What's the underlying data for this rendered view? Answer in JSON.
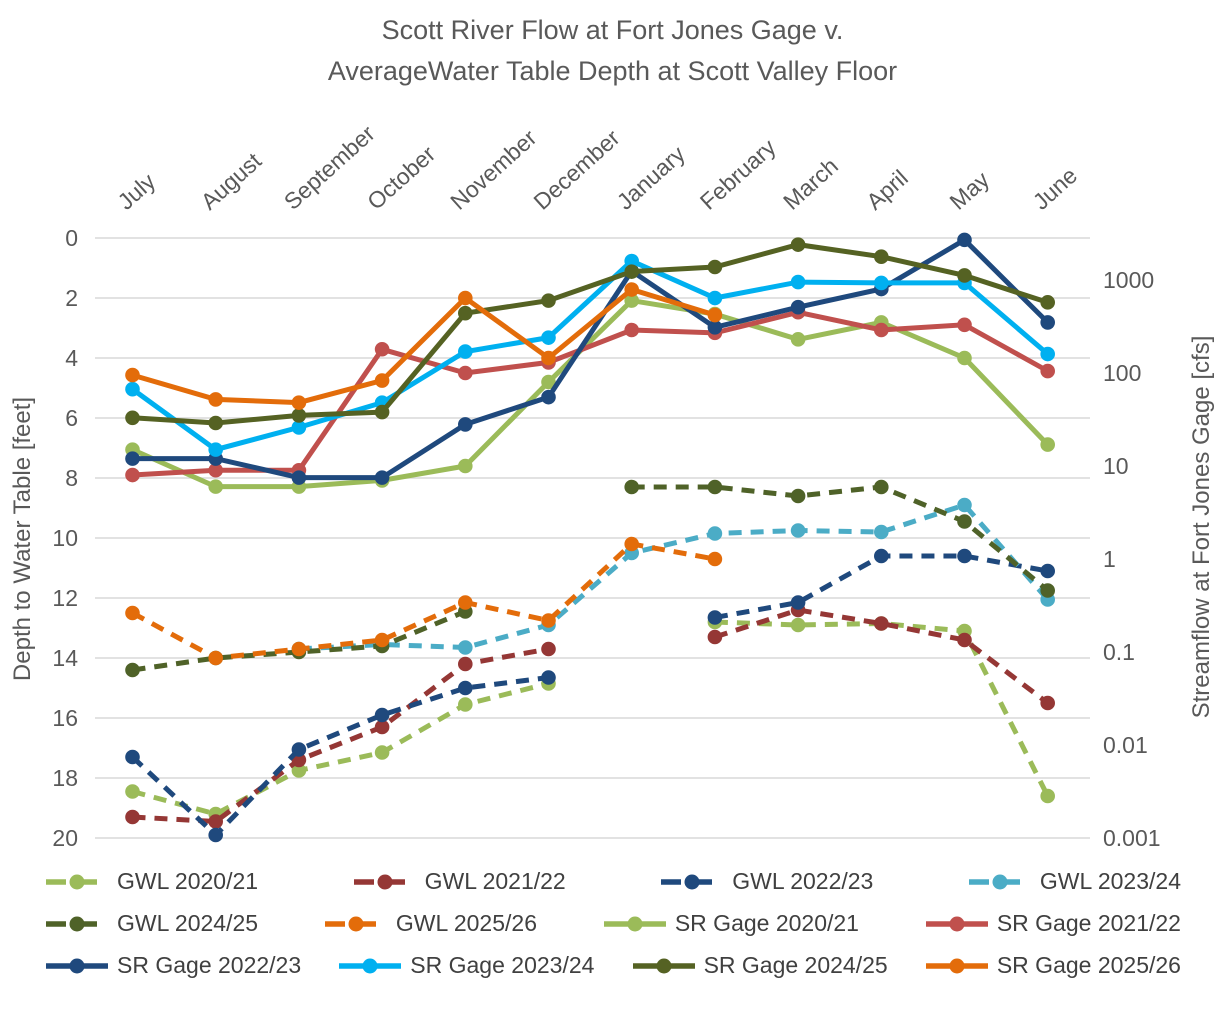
{
  "title": {
    "line1": "Scott River Flow at Fort Jones Gage v.",
    "line2": "AverageWater Table Depth at Scott Valley Floor"
  },
  "axes": {
    "left": {
      "title": "Depth to Water Table [feet]"
    },
    "right": {
      "title": "Streamflow at Fort Jones Gage [cfs]"
    }
  },
  "chart_data": {
    "type": "line",
    "title": "Scott River Flow at Fort Jones Gage v. AverageWater Table Depth at Scott Valley Floor",
    "categories": [
      "July",
      "August",
      "September",
      "October",
      "November",
      "December",
      "January",
      "February",
      "March",
      "April",
      "May",
      "June"
    ],
    "left_axis": {
      "label": "Depth to Water Table [feet]",
      "min": 0,
      "max": 20,
      "tick_step": 2,
      "inverted": true,
      "ticks": [
        0,
        2,
        4,
        6,
        8,
        10,
        12,
        14,
        16,
        18,
        20
      ]
    },
    "right_axis": {
      "label": "Streamflow at Fort Jones Gage [cfs]",
      "scale": "log",
      "ticks": [
        1000,
        100,
        10,
        1,
        0.1,
        0.01,
        0.001
      ]
    },
    "grid": "horizontal",
    "legend_position": "bottom",
    "series": [
      {
        "name": "GWL 2020/21",
        "axis": "depth",
        "line_style": "dashed",
        "color": "#9BBB59",
        "values": [
          18.45,
          19.2,
          17.75,
          17.15,
          15.55,
          14.85,
          null,
          12.8,
          12.9,
          12.85,
          13.1,
          18.6
        ]
      },
      {
        "name": "GWL 2021/22",
        "axis": "depth",
        "line_style": "dashed",
        "color": "#953735",
        "values": [
          19.3,
          19.45,
          17.4,
          16.3,
          14.2,
          13.7,
          null,
          13.3,
          12.4,
          12.85,
          13.4,
          15.5
        ]
      },
      {
        "name": "GWL 2022/23",
        "axis": "depth",
        "line_style": "dashed",
        "color": "#1F497D",
        "values": [
          17.3,
          19.9,
          17.05,
          15.9,
          15.0,
          14.65,
          null,
          12.65,
          12.15,
          10.6,
          10.6,
          11.1
        ]
      },
      {
        "name": "GWL 2023/24",
        "axis": "depth",
        "line_style": "dashed",
        "color": "#4BACC6",
        "values": [
          null,
          null,
          13.7,
          13.55,
          13.65,
          12.9,
          10.5,
          9.85,
          9.75,
          9.8,
          8.9,
          12.05
        ]
      },
      {
        "name": "GWL 2024/25",
        "axis": "depth",
        "line_style": "dashed",
        "color": "#4F6228",
        "values": [
          14.4,
          14.0,
          13.8,
          13.6,
          12.45,
          null,
          8.3,
          8.3,
          8.6,
          8.3,
          9.45,
          11.75
        ]
      },
      {
        "name": "GWL 2025/26",
        "axis": "depth",
        "line_style": "dashed",
        "color": "#E36C0A",
        "values": [
          12.5,
          14.0,
          13.7,
          13.4,
          12.15,
          12.75,
          10.2,
          10.7,
          null,
          null,
          null,
          null
        ]
      },
      {
        "name": "SR Gage 2020/21",
        "axis": "flow",
        "line_style": "solid",
        "color": "#9BBB59",
        "values": [
          15,
          6,
          6,
          7,
          10,
          80,
          600,
          430,
          230,
          350,
          145,
          17
        ]
      },
      {
        "name": "SR Gage 2021/22",
        "axis": "flow",
        "line_style": "solid",
        "color": "#C0504D",
        "values": [
          8,
          9,
          9,
          180,
          100,
          130,
          290,
          270,
          450,
          290,
          330,
          105
        ]
      },
      {
        "name": "SR Gage 2022/23",
        "axis": "flow",
        "line_style": "solid",
        "color": "#1F497D",
        "values": [
          12,
          12,
          7.5,
          7.5,
          28,
          55,
          1250,
          310,
          510,
          800,
          2700,
          350
        ]
      },
      {
        "name": "SR Gage 2023/24",
        "axis": "flow",
        "line_style": "solid",
        "color": "#00B0F0",
        "values": [
          67,
          15,
          26,
          48,
          170,
          240,
          1600,
          640,
          950,
          930,
          930,
          160
        ]
      },
      {
        "name": "SR Gage 2024/25",
        "axis": "flow",
        "line_style": "solid",
        "color": "#556223",
        "values": [
          33,
          29,
          35,
          38,
          440,
          600,
          1230,
          1380,
          2400,
          1780,
          1120,
          575
        ]
      },
      {
        "name": "SR Gage 2025/26",
        "axis": "flow",
        "line_style": "solid",
        "color": "#E36C0A",
        "values": [
          95,
          52,
          48,
          83,
          640,
          145,
          790,
          420,
          null,
          null,
          null,
          null
        ]
      }
    ],
    "style": {
      "grid_color": "#D9D9D9",
      "text_color": "#595959",
      "legend_text_color": "#404040"
    }
  }
}
